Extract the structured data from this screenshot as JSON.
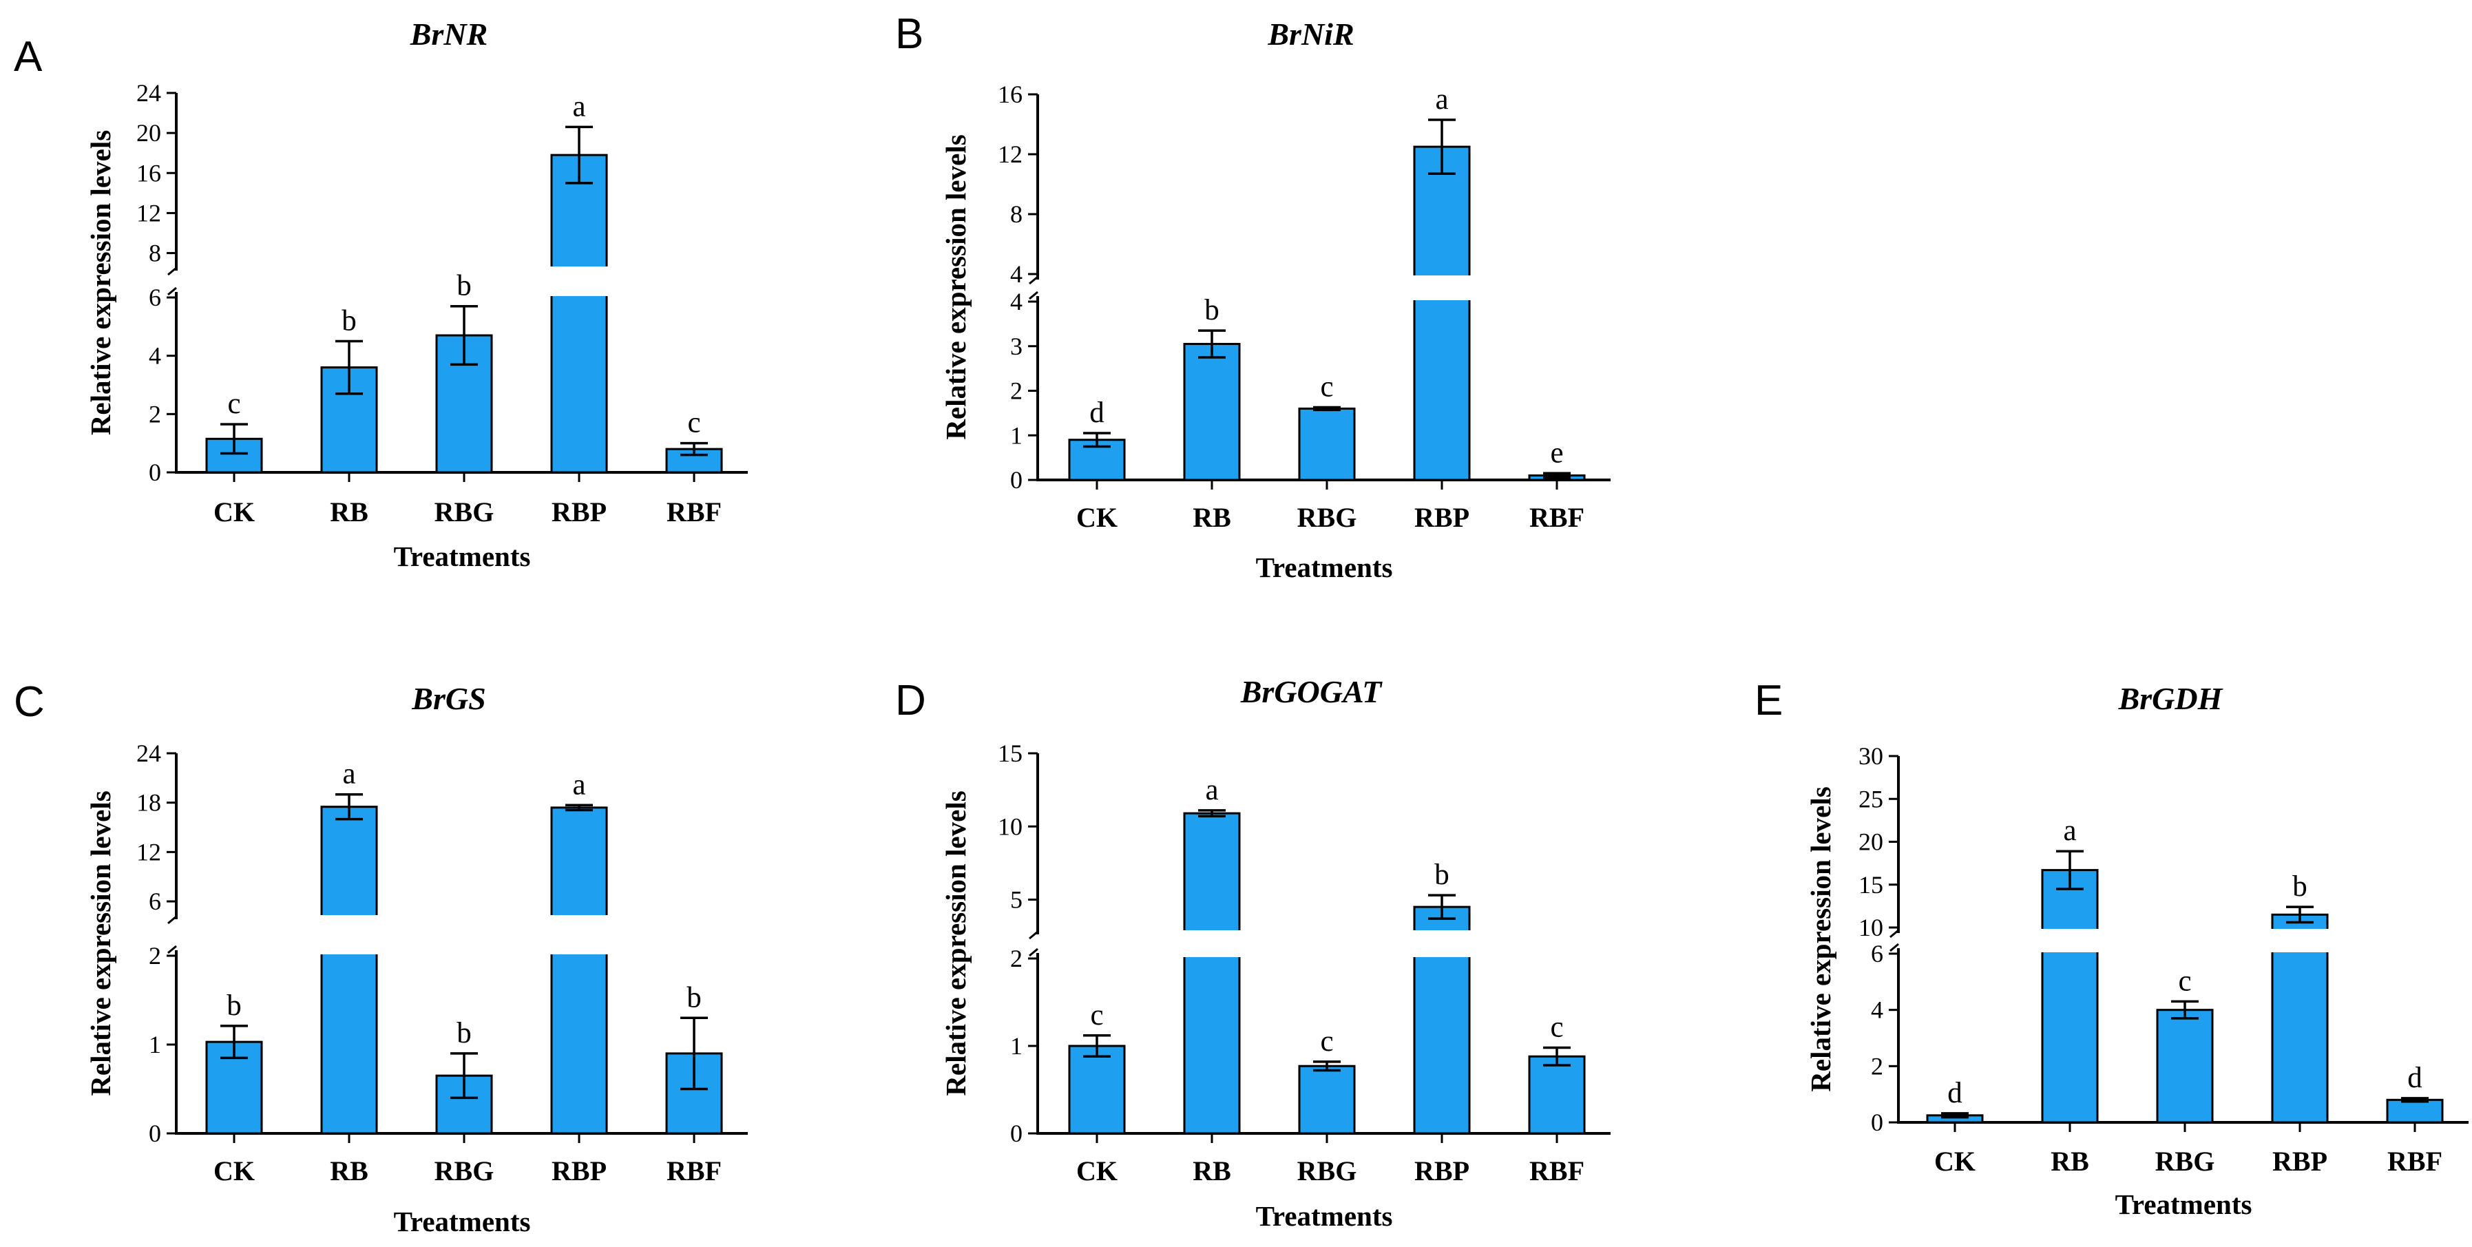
{
  "chart_data": [
    {
      "panel": "A",
      "title": "BrNR",
      "type": "bar",
      "xlabel": "Treatments",
      "ylabel": "Relative expression levels",
      "categories": [
        "CK",
        "RB",
        "RBG",
        "RBP",
        "RBF"
      ],
      "values": [
        1.15,
        3.6,
        4.7,
        17.8,
        0.8
      ],
      "errors": [
        0.5,
        0.9,
        1.0,
        2.8,
        0.2
      ],
      "significance": [
        "c",
        "b",
        "b",
        "a",
        "c"
      ],
      "color": "#1e9ff0",
      "axis_break": {
        "lower": {
          "range": [
            0,
            6
          ],
          "ticks": [
            "0",
            "2",
            "4",
            "6"
          ]
        },
        "upper": {
          "range": [
            6.8,
            24
          ],
          "ticks": [
            "8",
            "12",
            "16",
            "20",
            "24"
          ]
        }
      }
    },
    {
      "panel": "B",
      "title": "BrNiR",
      "type": "bar",
      "xlabel": "Treatments",
      "ylabel": "Relative expression levels",
      "categories": [
        "CK",
        "RB",
        "RBG",
        "RBP",
        "RBF"
      ],
      "values": [
        0.9,
        3.05,
        1.6,
        12.5,
        0.1
      ],
      "errors": [
        0.15,
        0.3,
        0.03,
        1.8,
        0.05
      ],
      "significance": [
        "d",
        "b",
        "c",
        "a",
        "e"
      ],
      "color": "#1e9ff0",
      "axis_break": {
        "lower": {
          "range": [
            0,
            4
          ],
          "ticks": [
            "0",
            "1",
            "2",
            "3",
            "4"
          ]
        },
        "upper": {
          "range": [
            4,
            16
          ],
          "ticks": [
            "4",
            "8",
            "12",
            "16"
          ]
        }
      }
    },
    {
      "panel": "C",
      "title": "BrGS",
      "type": "bar",
      "xlabel": "Treatments",
      "ylabel": "Relative expression levels",
      "categories": [
        "CK",
        "RB",
        "RBG",
        "RBP",
        "RBF"
      ],
      "values": [
        1.03,
        17.5,
        0.65,
        17.4,
        0.9
      ],
      "errors": [
        0.18,
        1.5,
        0.25,
        0.3,
        0.4
      ],
      "significance": [
        "b",
        "a",
        "b",
        "a",
        "b"
      ],
      "color": "#1e9ff0",
      "axis_break": {
        "lower": {
          "range": [
            0,
            2
          ],
          "ticks": [
            "0",
            "1",
            "2"
          ]
        },
        "upper": {
          "range": [
            4.5,
            24
          ],
          "ticks": [
            "6",
            "12",
            "18",
            "24"
          ]
        }
      }
    },
    {
      "panel": "D",
      "title": "BrGOGAT",
      "type": "bar",
      "xlabel": "Treatments",
      "ylabel": "Relative expression levels",
      "categories": [
        "CK",
        "RB",
        "RBG",
        "RBP",
        "RBF"
      ],
      "values": [
        1.0,
        10.9,
        0.77,
        4.5,
        0.88
      ],
      "errors": [
        0.12,
        0.2,
        0.05,
        0.8,
        0.1
      ],
      "significance": [
        "c",
        "a",
        "c",
        "b",
        "c"
      ],
      "color": "#1e9ff0",
      "axis_break": {
        "lower": {
          "range": [
            0,
            2
          ],
          "ticks": [
            "0",
            "1",
            "2"
          ]
        },
        "upper": {
          "range": [
            3,
            15
          ],
          "ticks": [
            "5",
            "10",
            "15"
          ]
        }
      }
    },
    {
      "panel": "E",
      "title": "BrGDH",
      "type": "bar",
      "xlabel": "Treatments",
      "ylabel": "Relative expression levels",
      "categories": [
        "CK",
        "RB",
        "RBG",
        "RBP",
        "RBF"
      ],
      "values": [
        0.25,
        16.7,
        4.0,
        11.5,
        0.8
      ],
      "errors": [
        0.07,
        2.2,
        0.3,
        0.9,
        0.06
      ],
      "significance": [
        "d",
        "a",
        "c",
        "b",
        "d"
      ],
      "color": "#1e9ff0",
      "axis_break": {
        "lower": {
          "range": [
            0,
            6
          ],
          "ticks": [
            "0",
            "2",
            "4",
            "6"
          ]
        },
        "upper": {
          "range": [
            10,
            30
          ],
          "ticks": [
            "10",
            "15",
            "20",
            "25",
            "30"
          ]
        }
      }
    }
  ]
}
